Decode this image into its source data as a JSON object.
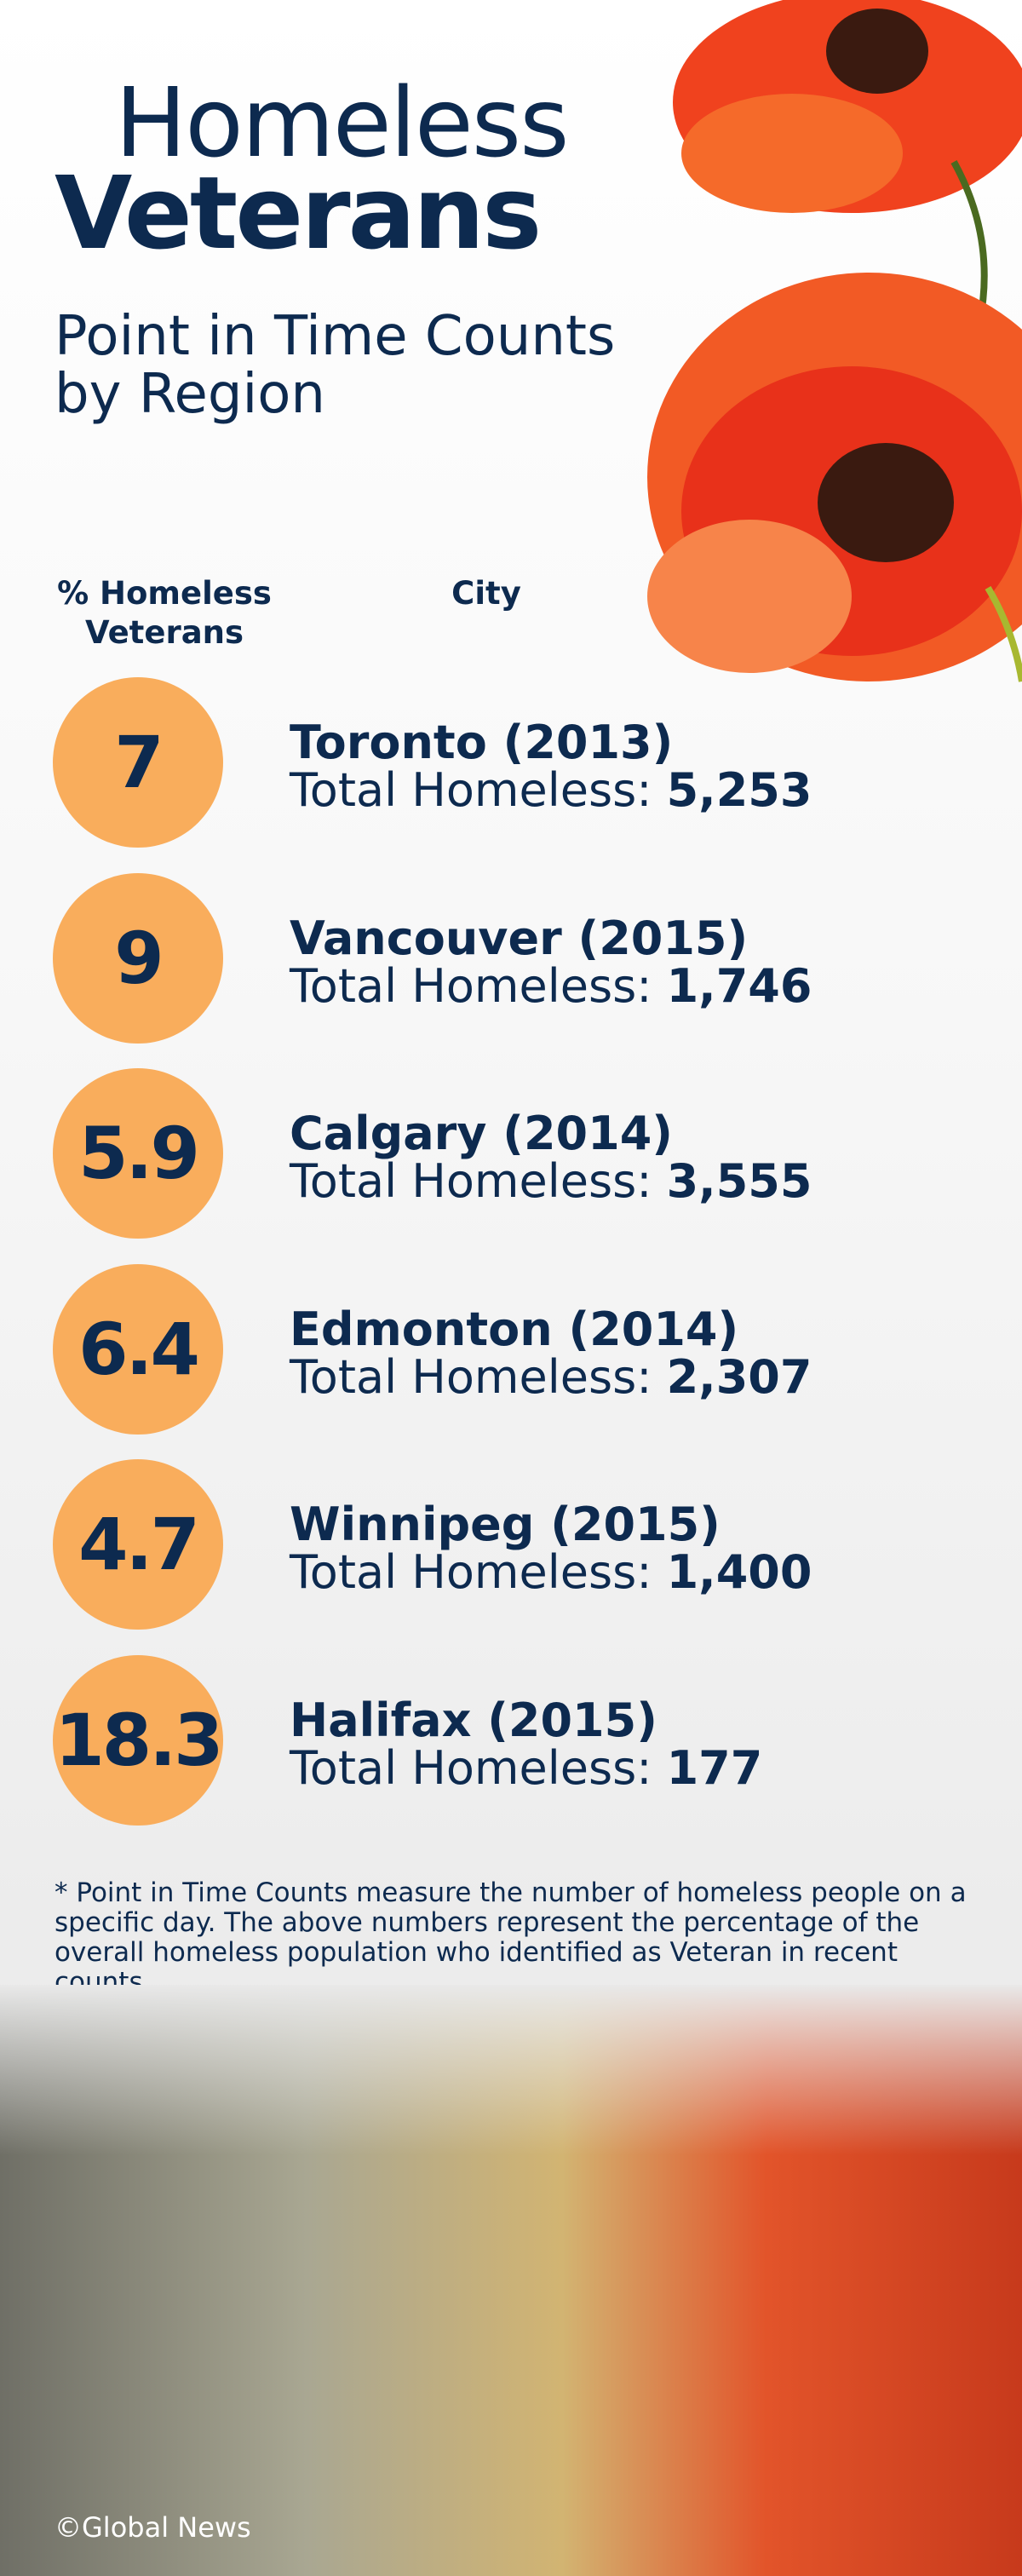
{
  "header": {
    "title_line1": "Homeless",
    "title_line2": "Veterans",
    "subtitle_line1": "Point in Time Counts",
    "subtitle_line2": "by Region"
  },
  "table": {
    "columns": [
      "% Homeless Veterans",
      "City"
    ],
    "rows": [
      {
        "percent": 7,
        "city": "Toronto (2013)",
        "total_label": "Total Homeless:",
        "total": "5,253"
      },
      {
        "percent": 9,
        "city": "Vancouver (2015)",
        "total_label": "Total Homeless:",
        "total": "1,746"
      },
      {
        "percent": 5.9,
        "city": "Calgary (2014)",
        "total_label": "Total Homeless:",
        "total": "3,555"
      },
      {
        "percent": 6.4,
        "city": "Edmonton (2014)",
        "total_label": "Total Homeless:",
        "total": "2,307"
      },
      {
        "percent": 4.7,
        "city": "Winnipeg (2015)",
        "total_label": "Total Homeless:",
        "total": "1,400"
      },
      {
        "percent": 18.3,
        "city": "Halifax (2015)",
        "total_label": "Total Homeless:",
        "total": "177"
      }
    ]
  },
  "footnote": "* Point in Time Counts measure the number of homeless people on a specific day. The above numbers represent the percentage of the overall homeless population who identified as Veteran in recent counts.",
  "credit": "©Global News"
}
